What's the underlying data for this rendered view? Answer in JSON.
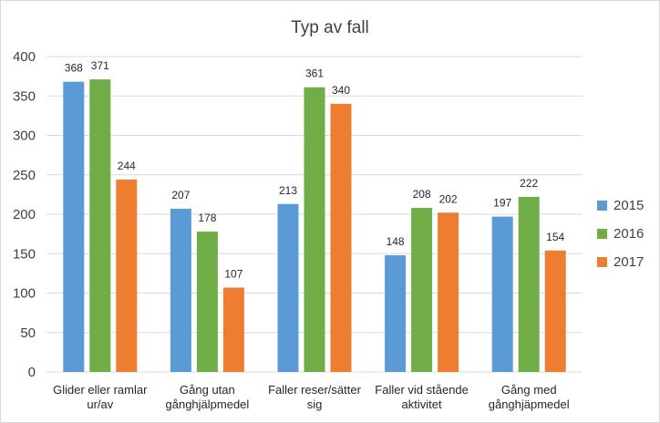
{
  "chart_data": {
    "type": "bar",
    "title": "Typ av fall",
    "xlabel": "",
    "ylabel": "",
    "ylim": [
      0,
      400
    ],
    "yticks": [
      0,
      50,
      100,
      150,
      200,
      250,
      300,
      350,
      400
    ],
    "grid": true,
    "legend_position": "right",
    "categories": [
      [
        "Glider eller ramlar",
        "ur/av"
      ],
      [
        "Gång utan",
        "gånghjälpmedel"
      ],
      [
        "Faller reser/sätter",
        "sig"
      ],
      [
        "Faller vid stående",
        "aktivitet"
      ],
      [
        "Gång med",
        "gånghjäpmedel"
      ]
    ],
    "series": [
      {
        "name": "2015",
        "color": "#5b9bd5",
        "values": [
          368,
          207,
          213,
          148,
          197
        ]
      },
      {
        "name": "2016",
        "color": "#70ad47",
        "values": [
          371,
          178,
          361,
          208,
          222
        ]
      },
      {
        "name": "2017",
        "color": "#ed7d31",
        "values": [
          244,
          107,
          340,
          202,
          154
        ]
      }
    ]
  }
}
